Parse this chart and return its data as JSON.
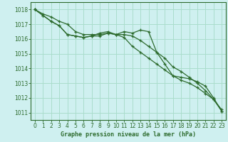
{
  "title": "Graphe pression niveau de la mer (hPa)",
  "background_color": "#cff0f0",
  "plot_bg_color": "#cff0f0",
  "grid_color": "#aaddcc",
  "line_color": "#2d6b2d",
  "bottom_bar_color": "#2d6b2d",
  "ylim": [
    1010.5,
    1018.5
  ],
  "xlim": [
    -0.5,
    23.5
  ],
  "yticks": [
    1011,
    1012,
    1013,
    1014,
    1015,
    1016,
    1017,
    1018
  ],
  "xticks": [
    0,
    1,
    2,
    3,
    4,
    5,
    6,
    7,
    8,
    9,
    10,
    11,
    12,
    13,
    14,
    15,
    16,
    17,
    18,
    19,
    20,
    21,
    22,
    23
  ],
  "series": [
    [
      1018.0,
      1017.7,
      1017.5,
      1017.2,
      1017.0,
      1016.5,
      1016.3,
      1016.3,
      1016.3,
      1016.4,
      1016.3,
      1016.5,
      1016.4,
      1016.6,
      1016.5,
      1015.1,
      1014.3,
      1013.5,
      1013.4,
      1013.3,
      1013.1,
      1012.8,
      1012.0,
      1011.1
    ],
    [
      1018.0,
      1017.6,
      1017.2,
      1016.9,
      1016.3,
      1016.2,
      1016.1,
      1016.2,
      1016.2,
      1016.4,
      1016.3,
      1016.3,
      1016.2,
      1015.9,
      1015.5,
      1015.1,
      1014.7,
      1014.1,
      1013.8,
      1013.4,
      1013.0,
      1012.5,
      1011.9,
      1011.1
    ],
    [
      1018.0,
      1017.6,
      1017.2,
      1016.9,
      1016.3,
      1016.2,
      1016.1,
      1016.2,
      1016.4,
      1016.5,
      1016.3,
      1016.1,
      1015.5,
      1015.1,
      1014.7,
      1014.3,
      1013.9,
      1013.5,
      1013.2,
      1013.0,
      1012.7,
      1012.3,
      1011.9,
      1011.2
    ]
  ],
  "tick_fontsize": 5.5,
  "label_fontsize": 6.0
}
